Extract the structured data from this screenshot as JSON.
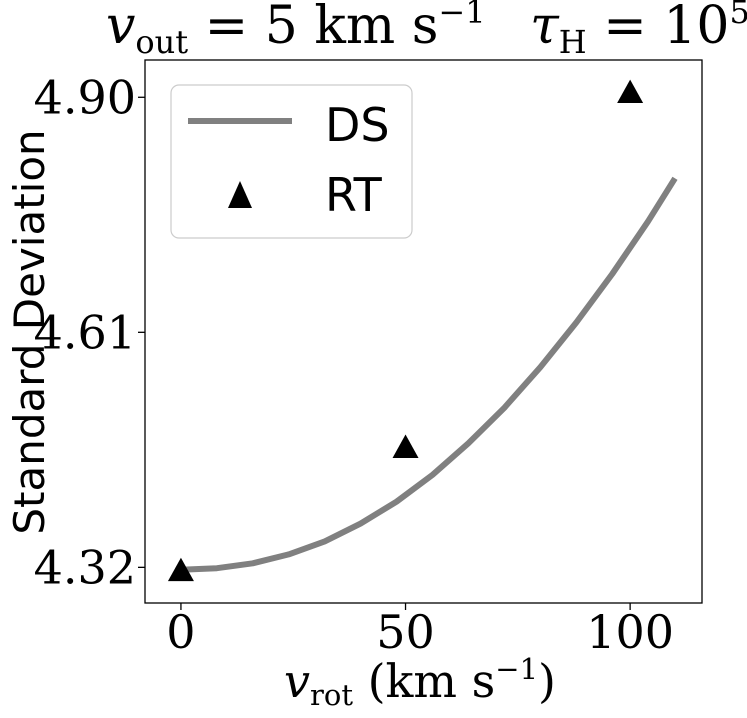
{
  "chart_data": {
    "type": "line",
    "title": {
      "left_var": "v",
      "left_sub": "out",
      "left_rest": " = 5 km s",
      "left_sup": "−1",
      "right_var": "τ",
      "right_sub": "H",
      "right_rest": " = 10",
      "right_sup": "5"
    },
    "xlabel": {
      "var": "v",
      "sub": "rot",
      "rest": " (km s",
      "sup": "−1",
      "close": ")"
    },
    "ylabel": "Standard Deviation",
    "xlim": [
      -8,
      116
    ],
    "ylim": [
      4.276,
      4.946
    ],
    "x_ticks": [
      0,
      50,
      100
    ],
    "y_ticks": [
      4.32,
      4.61,
      4.9
    ],
    "y_tick_labels": [
      "4.32",
      "4.61",
      "4.90"
    ],
    "x_tick_labels": [
      "0",
      "50",
      "100"
    ],
    "grid": false,
    "legend_position": "upper-left",
    "series": [
      {
        "name": "DS",
        "kind": "line",
        "color": "#808080",
        "x": [
          0,
          8,
          16,
          24,
          32,
          40,
          48,
          56,
          64,
          72,
          80,
          88,
          96,
          104,
          110
        ],
        "y": [
          4.317,
          4.319,
          4.325,
          4.336,
          4.352,
          4.374,
          4.401,
          4.434,
          4.473,
          4.517,
          4.567,
          4.622,
          4.682,
          4.747,
          4.8
        ]
      },
      {
        "name": "RT",
        "kind": "scatter",
        "marker": "triangle",
        "color": "#000000",
        "x": [
          0,
          50,
          100
        ],
        "y": [
          4.315,
          4.467,
          4.905
        ]
      }
    ]
  }
}
